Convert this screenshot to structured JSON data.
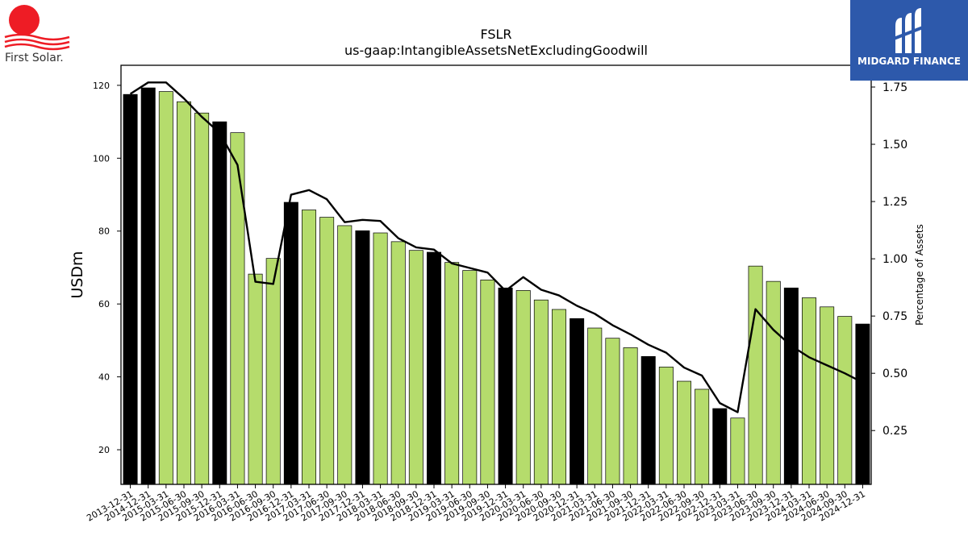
{
  "logos": {
    "left_brand": "First Solar.",
    "right_brand": "MIDGARD FINANCE"
  },
  "colors": {
    "bar_highlight": "#000000",
    "bar_normal": "#b5dc6c",
    "line": "#000000",
    "right_logo_bg": "#2d59ab",
    "left_logo_sun": "#ee1c25"
  },
  "chart_data": {
    "type": "bar",
    "title": "FSLR",
    "subtitle": "us-gaap:IntangibleAssetsNetExcludingGoodwill",
    "ylabel": "USDm",
    "y2label": "Percentage of Assets",
    "ylim": [
      10.5,
      125.5
    ],
    "y2lim": [
      0.015,
      1.845
    ],
    "yticks": [
      20,
      40,
      60,
      80,
      100,
      120
    ],
    "y2ticks": [
      "0.25",
      "0.50",
      "0.75",
      "1.00",
      "1.25",
      "1.50",
      "1.75"
    ],
    "categories": [
      "2013-12-31",
      "2014-12-31",
      "2015-03-31",
      "2015-06-30",
      "2015-09-30",
      "2015-12-31",
      "2016-03-31",
      "2016-06-30",
      "2016-09-30",
      "2016-12-31",
      "2017-03-31",
      "2017-06-30",
      "2017-09-30",
      "2017-12-31",
      "2018-03-31",
      "2018-06-30",
      "2018-09-30",
      "2018-12-31",
      "2019-03-31",
      "2019-06-30",
      "2019-09-30",
      "2019-12-31",
      "2020-03-31",
      "2020-06-30",
      "2020-09-30",
      "2020-12-31",
      "2021-03-31",
      "2021-06-30",
      "2021-09-30",
      "2021-12-31",
      "2022-03-31",
      "2022-06-30",
      "2022-09-30",
      "2022-12-31",
      "2023-03-31",
      "2023-06-30",
      "2023-09-30",
      "2023-12-31",
      "2024-03-31",
      "2024-06-30",
      "2024-09-30",
      "2024-12-31"
    ],
    "series": [
      {
        "type": "bar",
        "axis": "left",
        "values": [
          117.5,
          119.3,
          118.3,
          115.5,
          112.4,
          110.0,
          107.0,
          68.2,
          72.5,
          87.9,
          85.8,
          83.8,
          81.5,
          80.1,
          79.5,
          77.1,
          74.7,
          74.2,
          71.4,
          69.2,
          66.6,
          64.4,
          63.7,
          61.1,
          58.5,
          56.0,
          53.4,
          50.6,
          48.0,
          45.6,
          42.7,
          38.8,
          36.6,
          31.3,
          28.7,
          70.4,
          66.2,
          64.4,
          61.7,
          59.2,
          56.6,
          54.5
        ],
        "highlight": [
          true,
          true,
          false,
          false,
          false,
          true,
          false,
          false,
          false,
          true,
          false,
          false,
          false,
          true,
          false,
          false,
          false,
          true,
          false,
          false,
          false,
          true,
          false,
          false,
          false,
          true,
          false,
          false,
          false,
          true,
          false,
          false,
          false,
          true,
          false,
          false,
          false,
          true,
          false,
          false,
          false,
          true
        ]
      },
      {
        "type": "line",
        "axis": "right",
        "values": [
          1.72,
          1.77,
          1.77,
          1.7,
          1.62,
          1.55,
          1.41,
          0.9,
          0.89,
          1.28,
          1.3,
          1.26,
          1.16,
          1.17,
          1.165,
          1.09,
          1.05,
          1.04,
          0.98,
          0.96,
          0.94,
          0.86,
          0.92,
          0.865,
          0.84,
          0.795,
          0.76,
          0.71,
          0.67,
          0.625,
          0.59,
          0.525,
          0.49,
          0.37,
          0.33,
          0.78,
          0.69,
          0.62,
          0.57,
          0.535,
          0.5,
          0.46
        ]
      }
    ]
  }
}
